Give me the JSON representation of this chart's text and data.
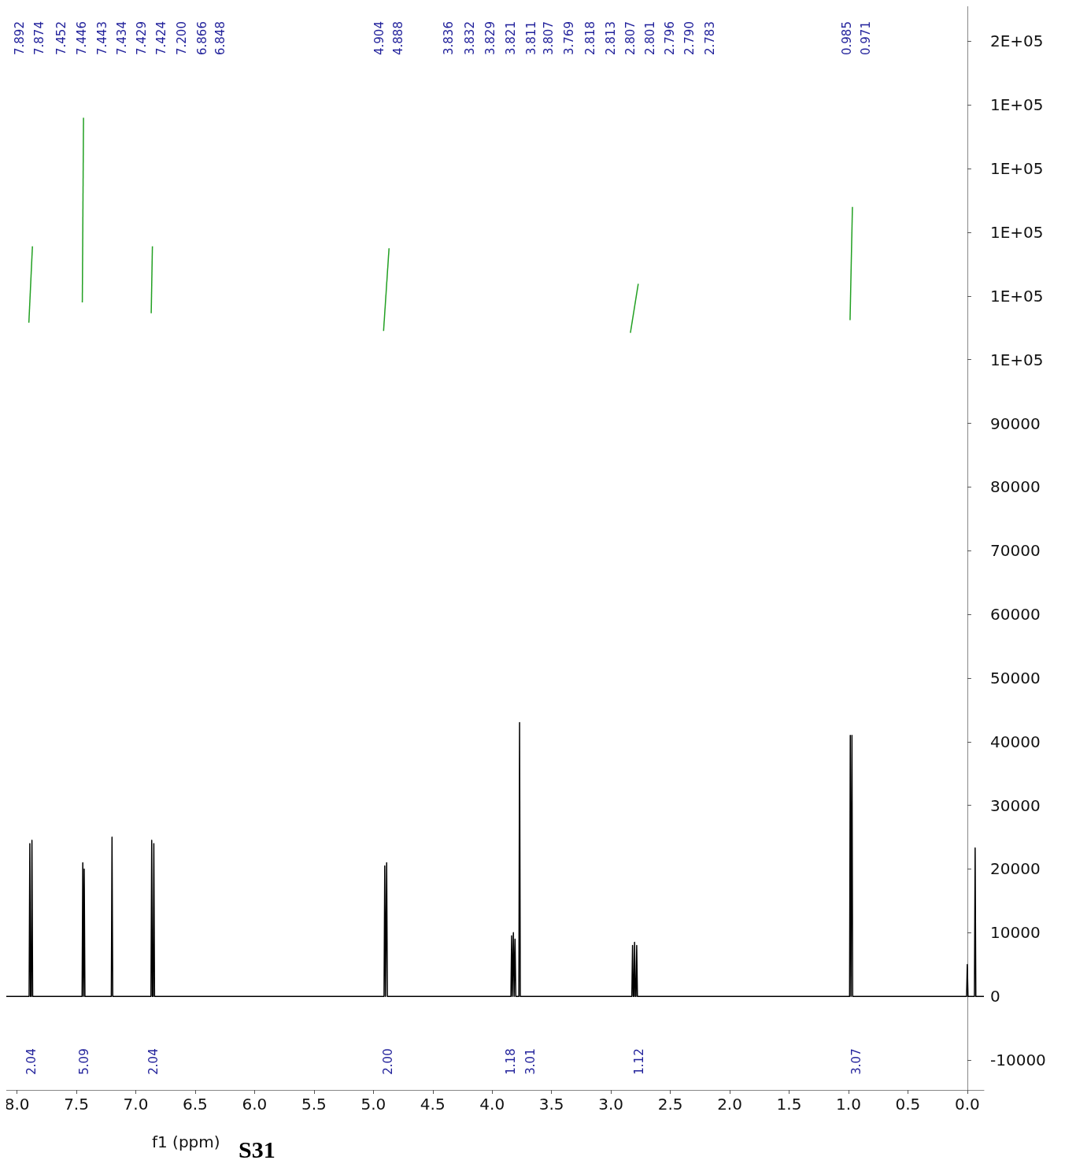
{
  "chart_data": {
    "type": "line",
    "xlabel": "f1 (ppm)",
    "xlim": [
      8.09,
      -0.14
    ],
    "ylim": [
      -14700,
      155500
    ],
    "xticks": [
      {
        "value": 8,
        "label": "8.0"
      },
      {
        "value": 7.5,
        "label": "7.5"
      },
      {
        "value": 7,
        "label": "7.0"
      },
      {
        "value": 6.5,
        "label": "6.5"
      },
      {
        "value": 6,
        "label": "6.0"
      },
      {
        "value": 5.5,
        "label": "5.5"
      },
      {
        "value": 5,
        "label": "5.0"
      },
      {
        "value": 4.5,
        "label": "4.5"
      },
      {
        "value": 4,
        "label": "4.0"
      },
      {
        "value": 3.5,
        "label": "3.5"
      },
      {
        "value": 3,
        "label": "3.0"
      },
      {
        "value": 2.5,
        "label": "2.5"
      },
      {
        "value": 2,
        "label": "2.0"
      },
      {
        "value": 1.5,
        "label": "1.5"
      },
      {
        "value": 1,
        "label": "1.0"
      },
      {
        "value": 0.5,
        "label": "0.5"
      },
      {
        "value": 0,
        "label": "0.0"
      }
    ],
    "yticks": [
      -10000,
      0,
      10000,
      20000,
      30000,
      40000,
      50000,
      60000,
      70000,
      80000,
      90000,
      {
        "value": 100000,
        "label": "1E+05"
      },
      {
        "value": 110000,
        "label": "1E+05"
      },
      {
        "value": 120000,
        "label": "1E+05"
      },
      {
        "value": 130000,
        "label": "1E+05"
      },
      {
        "value": 140000,
        "label": "1E+05"
      },
      {
        "value": 150000,
        "label": "2E+05"
      }
    ],
    "series": [
      {
        "color": "#000000",
        "x": [
          8.09,
          7.898,
          7.892,
          7.886,
          7.88,
          7.874,
          7.868,
          7.452,
          7.446,
          7.44,
          7.439,
          7.434,
          7.428,
          7.206,
          7.2,
          7.194,
          6.872,
          6.866,
          6.86,
          6.854,
          6.848,
          6.842,
          4.91,
          4.904,
          4.898,
          4.894,
          4.888,
          4.882,
          3.842,
          3.836,
          3.83,
          3.827,
          3.821,
          3.815,
          3.813,
          3.807,
          3.801,
          3.775,
          3.769,
          3.763,
          2.824,
          2.818,
          2.812,
          2.807,
          2.801,
          2.795,
          2.789,
          2.783,
          2.777,
          0.991,
          0.985,
          0.979,
          0.977,
          0.971,
          0.965,
          0.006,
          0.0,
          -0.006,
          -0.06,
          -0.066,
          -0.072,
          -0.14
        ],
        "values": [
          0,
          0,
          24000,
          0,
          0,
          24500,
          0,
          0,
          21000,
          0,
          0,
          20000,
          0,
          0,
          25000,
          0,
          0,
          24500,
          0,
          0,
          24000,
          0,
          0,
          20500,
          0,
          0,
          21000,
          0,
          0,
          9500,
          0,
          0,
          10000,
          0,
          0,
          9000,
          0,
          0,
          43000,
          0,
          0,
          8000,
          0,
          0,
          8500,
          0,
          0,
          8000,
          0,
          0,
          41000,
          0,
          0,
          41000,
          0,
          0,
          5000,
          0,
          0,
          23300,
          0,
          0
        ]
      },
      {
        "type": "line",
        "color": "#22a022",
        "x": [
          7.9,
          7.87
        ],
        "values": [
          105800,
          117800
        ]
      },
      {
        "type": "line",
        "color": "#22a022",
        "x": [
          7.45,
          7.44
        ],
        "values": [
          109000,
          138000
        ]
      },
      {
        "type": "line",
        "color": "#22a022",
        "x": [
          6.87,
          6.86
        ],
        "values": [
          107300,
          117800
        ]
      },
      {
        "type": "line",
        "color": "#22a022",
        "x": [
          4.914,
          4.868
        ],
        "values": [
          104500,
          117500
        ]
      },
      {
        "type": "line",
        "color": "#22a022",
        "x": [
          2.836,
          2.77
        ],
        "values": [
          104200,
          111900
        ]
      },
      {
        "type": "line",
        "color": "#22a022",
        "x": [
          0.987,
          0.967
        ],
        "values": [
          106200,
          124000
        ]
      }
    ],
    "annotations": [
      "7.892",
      "7.874",
      "7.452",
      "7.446",
      "7.443",
      "7.434",
      "7.429",
      "7.424",
      "7.200",
      "6.866",
      "6.848",
      "4.904",
      "4.888",
      "3.836",
      "3.832",
      "3.829",
      "3.821",
      "3.811",
      "3.807",
      "3.769",
      "2.818",
      "2.813",
      "2.807",
      "2.801",
      "2.796",
      "2.790",
      "2.783",
      "0.985",
      "0.971",
      "2.04",
      "5.09",
      "2.04",
      "2.00",
      "1.18",
      "3.01",
      "1.12",
      "3.07",
      "S31"
    ]
  }
}
